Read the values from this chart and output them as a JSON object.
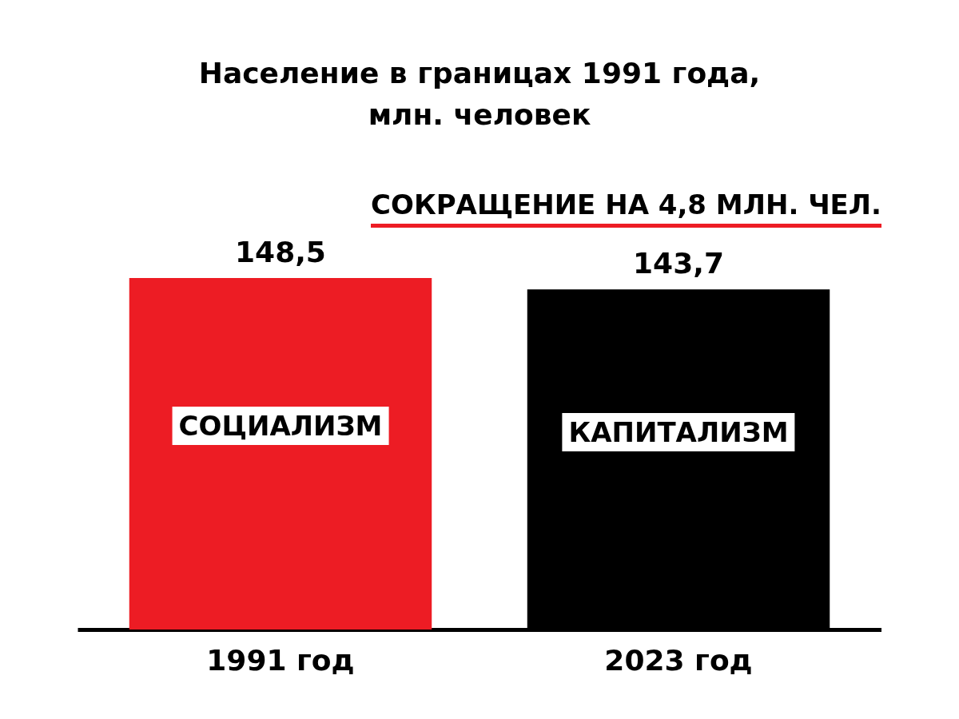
{
  "chart_data": {
    "type": "bar",
    "title": [
      "Население в границах 1991 года,",
      "млн. человек"
    ],
    "categories": [
      "1991 год",
      "2023 год"
    ],
    "values": [
      148.5,
      143.7
    ],
    "colors": [
      "#ed1c24",
      "#000000"
    ],
    "value_labels": [
      "148,5",
      "143,7"
    ],
    "annotations": [
      {
        "text": "СОКРАЩЕНИЕ НА 4,8 МЛН. ЧЕЛ."
      },
      "СОЦИАЛИЗМ",
      "КАПИТАЛИЗМ"
    ]
  }
}
